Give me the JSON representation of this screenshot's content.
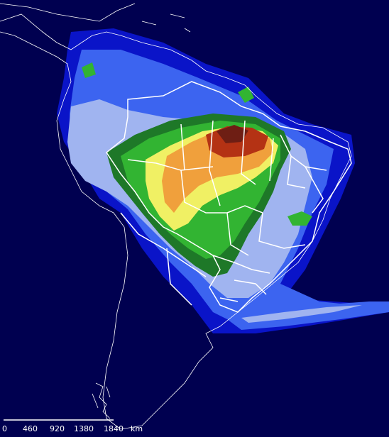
{
  "map": {
    "background_color": "#000050",
    "legend_colors": [
      "#0a14c8",
      "#3c64f0",
      "#a0b4f0",
      "#1e7828",
      "#32b432",
      "#f0f064",
      "#f0a03c",
      "#b43214",
      "#6e1e14"
    ],
    "border_color": "#ffffff"
  },
  "scale_bar": {
    "labels": [
      "0",
      "460",
      "920",
      "1380",
      "1840",
      "km"
    ]
  }
}
